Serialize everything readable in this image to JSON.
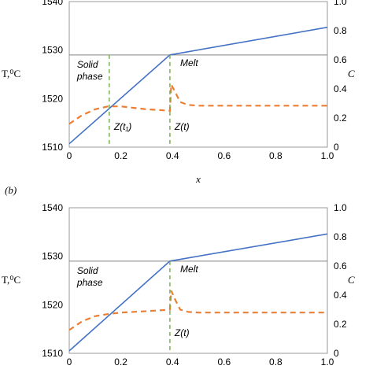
{
  "panel_b_label": "(b)",
  "chart_data": [
    {
      "type": "line",
      "panel": "a",
      "xlabel": "x",
      "ylabel_left": "T,⁰C",
      "ylabel_right": "C",
      "xlim": [
        0,
        1.0
      ],
      "ylim_left": [
        1510,
        1540
      ],
      "ylim_right": [
        0,
        1.0
      ],
      "x_ticks": [
        "0",
        "0.2",
        "0.4",
        "0.6",
        "0.8",
        "1.0"
      ],
      "y_left_ticks": [
        "1510",
        "1520",
        "1530",
        "1540"
      ],
      "y_right_ticks": [
        "0",
        "0.2",
        "0.4",
        "0.6",
        "0.8",
        "1.0"
      ],
      "melt_temperature": 1529,
      "series": [
        {
          "axis": "left",
          "color": "#4472c4",
          "style": "solid",
          "x": [
            0,
            0.39,
            1.0
          ],
          "y": [
            1510.7,
            1529.0,
            1534.7
          ]
        },
        {
          "axis": "right",
          "color": "#ed7d31",
          "style": "dashed",
          "x": [
            0,
            0.05,
            0.1,
            0.15,
            0.2,
            0.25,
            0.3,
            0.35,
            0.39,
            0.395,
            0.41,
            0.43,
            0.46,
            0.5,
            0.6,
            0.8,
            1.0
          ],
          "y": [
            0.16,
            0.22,
            0.26,
            0.28,
            0.28,
            0.27,
            0.26,
            0.255,
            0.25,
            0.43,
            0.38,
            0.31,
            0.29,
            0.285,
            0.285,
            0.285,
            0.285
          ]
        }
      ],
      "markers": [
        {
          "x": 0.155,
          "label": "Z(t₁)",
          "color": "#70ad47"
        },
        {
          "x": 0.39,
          "label": "Z(t)",
          "color": "#70ad47"
        }
      ],
      "annotations": [
        {
          "text": "Solid phase",
          "at": "left-middle"
        },
        {
          "text": "Melt",
          "at": "center"
        }
      ]
    },
    {
      "type": "line",
      "panel": "b",
      "ylabel_left": "T,⁰C",
      "ylabel_right": "C",
      "xlim": [
        0,
        1.0
      ],
      "ylim_left": [
        1510,
        1540
      ],
      "ylim_right": [
        0,
        1.0
      ],
      "x_ticks": [
        "0",
        "0.2",
        "0.4",
        "0.6",
        "0.8",
        "1.0"
      ],
      "y_left_ticks": [
        "1510",
        "1520",
        "1530",
        "1540"
      ],
      "y_right_ticks": [
        "0",
        "0.2",
        "0.4",
        "0.6",
        "0.8",
        "1.0"
      ],
      "melt_temperature": 1529,
      "series": [
        {
          "axis": "left",
          "color": "#4472c4",
          "style": "solid",
          "x": [
            0,
            0.39,
            1.0
          ],
          "y": [
            1510.5,
            1529.0,
            1534.6
          ]
        },
        {
          "axis": "right",
          "color": "#ed7d31",
          "style": "dashed",
          "x": [
            0,
            0.05,
            0.1,
            0.15,
            0.2,
            0.25,
            0.3,
            0.35,
            0.39,
            0.395,
            0.41,
            0.43,
            0.46,
            0.5,
            0.6,
            0.8,
            1.0
          ],
          "y": [
            0.16,
            0.22,
            0.255,
            0.27,
            0.28,
            0.285,
            0.29,
            0.295,
            0.3,
            0.43,
            0.37,
            0.3,
            0.285,
            0.28,
            0.28,
            0.28,
            0.28
          ]
        }
      ],
      "markers": [
        {
          "x": 0.39,
          "label": "Z(t)",
          "color": "#70ad47"
        }
      ],
      "annotations": [
        {
          "text": "Solid phase",
          "at": "left-middle"
        },
        {
          "text": "Melt",
          "at": "center"
        }
      ]
    }
  ]
}
